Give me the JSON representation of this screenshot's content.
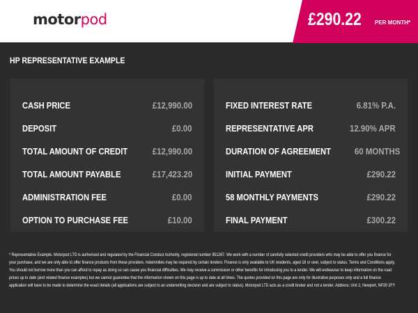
{
  "header": {
    "logo_part1": "motor",
    "logo_part2": "pod",
    "price": "£290.22",
    "price_suffix": "PER MONTH*",
    "accent_color": "#d1005d"
  },
  "section_title": "HP REPRESENTATIVE EXAMPLE",
  "left_panel": [
    {
      "label": "CASH PRICE",
      "value": "£12,990.00"
    },
    {
      "label": "DEPOSIT",
      "value": "£0.00"
    },
    {
      "label": "TOTAL AMOUNT OF CREDIT",
      "value": "£12,990.00"
    },
    {
      "label": "TOTAL AMOUNT PAYABLE",
      "value": "£17,423.20"
    },
    {
      "label": "ADMINISTRATION FEE",
      "value": "£0.00"
    },
    {
      "label": "OPTION TO PURCHASE FEE",
      "value": "£10.00"
    }
  ],
  "right_panel": [
    {
      "label": "FIXED INTEREST RATE",
      "value": "6.81% P.A."
    },
    {
      "label": "REPRESENTATIVE APR",
      "value": "12.90% APR"
    },
    {
      "label": "DURATION OF AGREEMENT",
      "value": "60 MONTHS"
    },
    {
      "label": "INITIAL PAYMENT",
      "value": "£290.22"
    },
    {
      "label": "58 MONTHLY PAYMENTS",
      "value": "£290.22"
    },
    {
      "label": "FINAL PAYMENT",
      "value": "£300.22"
    }
  ],
  "disclaimer": "* Representative Example. Motorpod LTD is authorised and regulated by the Financial Conduct Authority, registered number 951267. We work with a number of carefully selected credit providers who may be able to offer you finance for your purchase, and we are only able to offer finance products from these providers. Indemnities may be required by certain lenders. Finance is only available to UK residents, aged 18 or over, subject to status. Terms and Conditions apply. You should not borrow more than you can afford to repay as doing so can cause you financial difficulties. We may receive a commission or other benefits for introducing you to a lender. We will endeavour to keep information on the road prices up to date (and related finance examples) but we cannot guarantee that the information shown on this page is up to date at all times. The quotes provided on this page are only for illustrative purposes only and a full finance application will have to be made to determine the exact details (all applications are subject to an underwriting decision and are subject to status). Motorpod LTD acts as a credit broker and not a lender. Address: Unit 2, Newport, NP20 2FY"
}
